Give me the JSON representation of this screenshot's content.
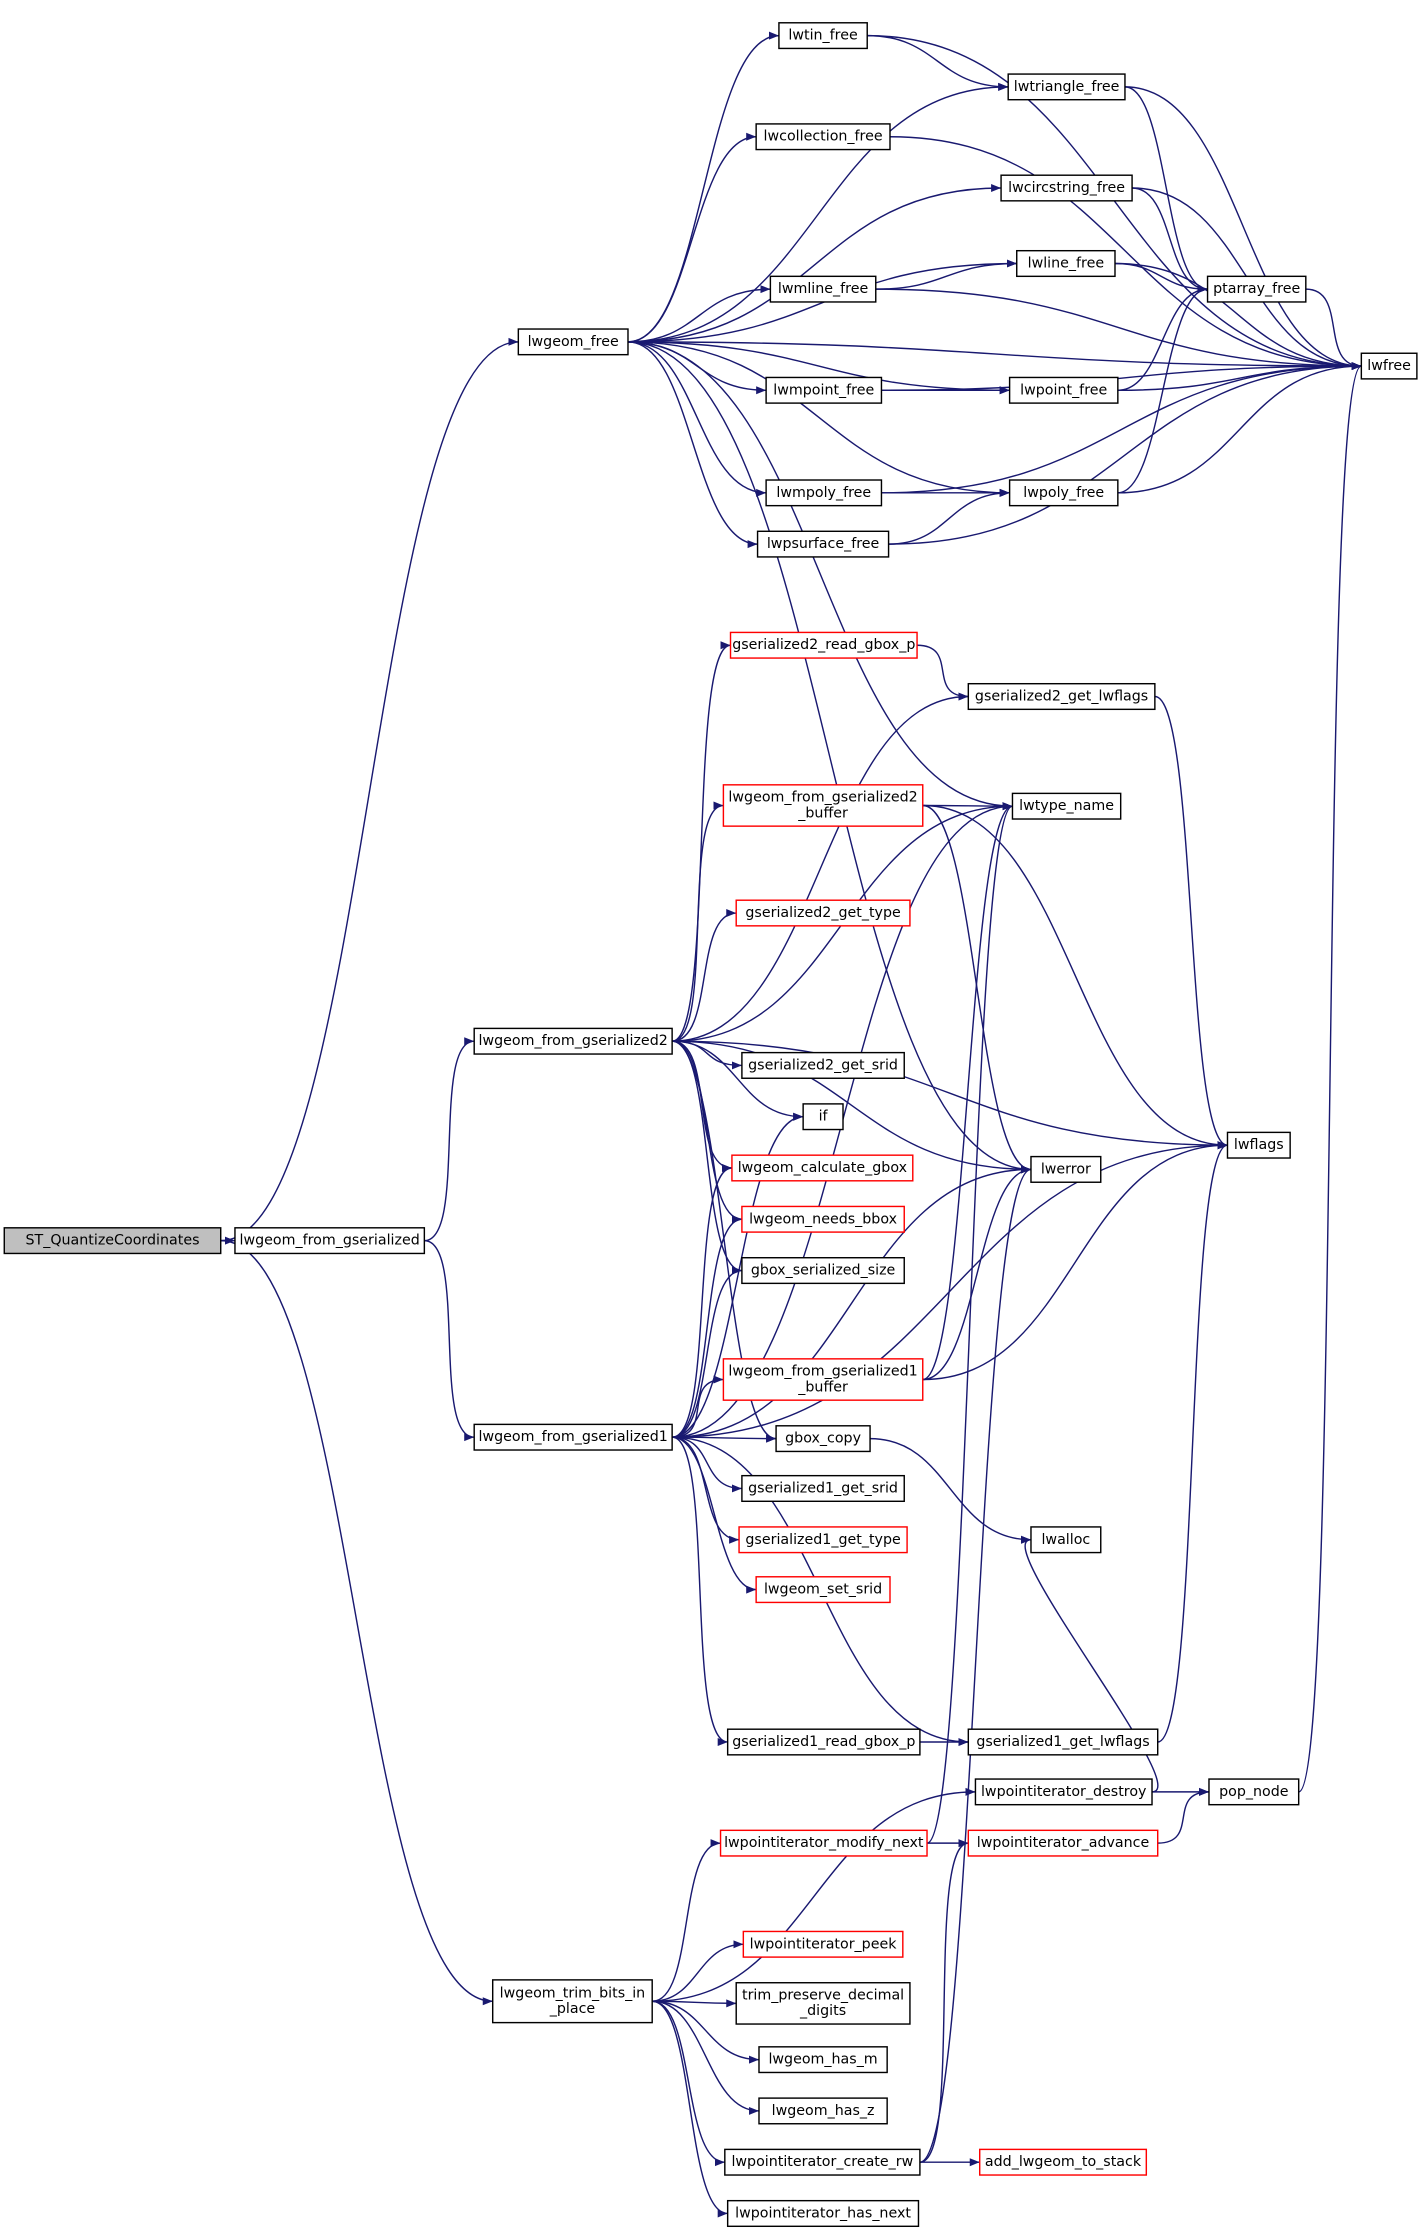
{
  "nodes": [
    {
      "lines": [
        "ST_QuantizeCoordinates"
      ]
    },
    {
      "lines": [
        "lwgeom_from_gserialized"
      ]
    },
    {
      "lines": [
        "lwgeom_free"
      ]
    },
    {
      "lines": [
        "lwgeom_from_gserialized2"
      ]
    },
    {
      "lines": [
        "lwgeom_from_gserialized1"
      ]
    },
    {
      "lines": [
        "lwgeom_trim_bits_in",
        "_place"
      ]
    },
    {
      "lines": [
        "lwtin_free"
      ]
    },
    {
      "lines": [
        "lwtriangle_free"
      ]
    },
    {
      "lines": [
        "lwcollection_free"
      ]
    },
    {
      "lines": [
        "lwcircstring_free"
      ]
    },
    {
      "lines": [
        "lwline_free"
      ]
    },
    {
      "lines": [
        "lwmline_free"
      ]
    },
    {
      "lines": [
        "ptarray_free"
      ]
    },
    {
      "lines": [
        "lwfree"
      ]
    },
    {
      "lines": [
        "lwmpoint_free"
      ]
    },
    {
      "lines": [
        "lwpoint_free"
      ]
    },
    {
      "lines": [
        "lwmpoly_free"
      ]
    },
    {
      "lines": [
        "lwpoly_free"
      ]
    },
    {
      "lines": [
        "lwpsurface_free"
      ]
    },
    {
      "lines": [
        "gserialized2_read_gbox_p"
      ]
    },
    {
      "lines": [
        "gserialized2_get_lwflags"
      ]
    },
    {
      "lines": [
        "lwgeom_from_gserialized2",
        "_buffer"
      ]
    },
    {
      "lines": [
        "lwtype_name"
      ]
    },
    {
      "lines": [
        "gserialized2_get_type"
      ]
    },
    {
      "lines": [
        "gserialized2_get_srid"
      ]
    },
    {
      "lines": [
        "if"
      ]
    },
    {
      "lines": [
        "lwflags"
      ]
    },
    {
      "lines": [
        "lwerror"
      ]
    },
    {
      "lines": [
        "lwgeom_calculate_gbox"
      ]
    },
    {
      "lines": [
        "lwgeom_needs_bbox"
      ]
    },
    {
      "lines": [
        "gbox_serialized_size"
      ]
    },
    {
      "lines": [
        "lwgeom_from_gserialized1",
        "_buffer"
      ]
    },
    {
      "lines": [
        "gbox_copy"
      ]
    },
    {
      "lines": [
        "gserialized1_get_srid"
      ]
    },
    {
      "lines": [
        "gserialized1_get_type"
      ]
    },
    {
      "lines": [
        "lwalloc"
      ]
    },
    {
      "lines": [
        "lwgeom_set_srid"
      ]
    },
    {
      "lines": [
        "gserialized1_read_gbox_p"
      ]
    },
    {
      "lines": [
        "gserialized1_get_lwflags"
      ]
    },
    {
      "lines": [
        "lwpointiterator_destroy"
      ]
    },
    {
      "lines": [
        "pop_node"
      ]
    },
    {
      "lines": [
        "lwpointiterator_modify_next"
      ]
    },
    {
      "lines": [
        "lwpointiterator_advance"
      ]
    },
    {
      "lines": [
        "lwpointiterator_peek"
      ]
    },
    {
      "lines": [
        "trim_preserve_decimal",
        "_digits"
      ]
    },
    {
      "lines": [
        "lwgeom_has_m"
      ]
    },
    {
      "lines": [
        "lwgeom_has_z"
      ]
    },
    {
      "lines": [
        "lwpointiterator_create_rw"
      ]
    },
    {
      "lines": [
        "add_lwgeom_to_stack"
      ]
    },
    {
      "lines": [
        "lwpointiterator_has_next"
      ]
    }
  ]
}
